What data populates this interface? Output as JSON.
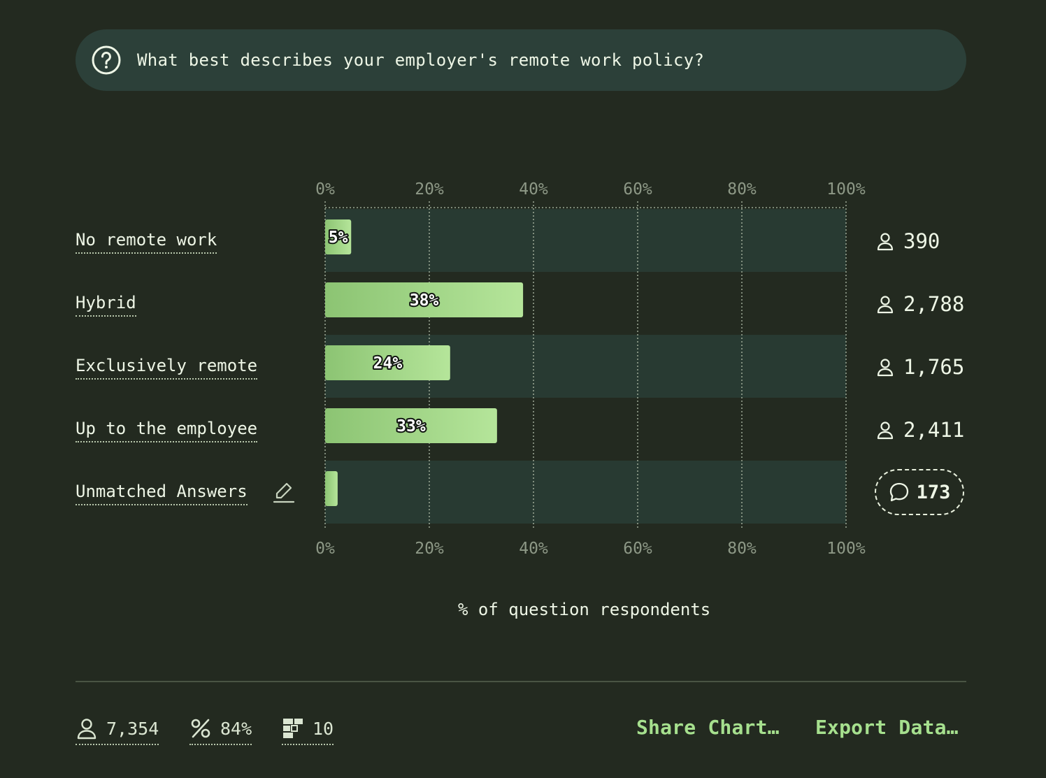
{
  "question": {
    "icon": "question-circle-icon",
    "text": "What best describes your employer's remote work policy?"
  },
  "chart_data": {
    "type": "bar",
    "orientation": "horizontal",
    "categories": [
      "No remote work",
      "Hybrid",
      "Exclusively remote",
      "Up to the employee",
      "Unmatched Answers"
    ],
    "values": [
      5,
      38,
      24,
      33,
      2.4
    ],
    "value_labels": [
      "5%",
      "38%",
      "24%",
      "33%",
      ""
    ],
    "counts": [
      "390",
      "2,788",
      "1,765",
      "2,411",
      "173"
    ],
    "xlim": [
      0,
      100
    ],
    "ticks": [
      "0%",
      "20%",
      "40%",
      "60%",
      "80%",
      "100%"
    ],
    "xlabel": "% of question respondents",
    "grid": true,
    "colors": {
      "bar_start": "#8cc473",
      "bar_end": "#b5e59a",
      "row_band": "#283a32",
      "background": "#232a20"
    }
  },
  "unmatched": {
    "icon": "speech-bubble-icon",
    "edit_icon": "pencil-icon"
  },
  "footer": {
    "respondents": "7,354",
    "percent": "84%",
    "questions": "10",
    "share_label": "Share Chart…",
    "export_label": "Export Data…"
  }
}
